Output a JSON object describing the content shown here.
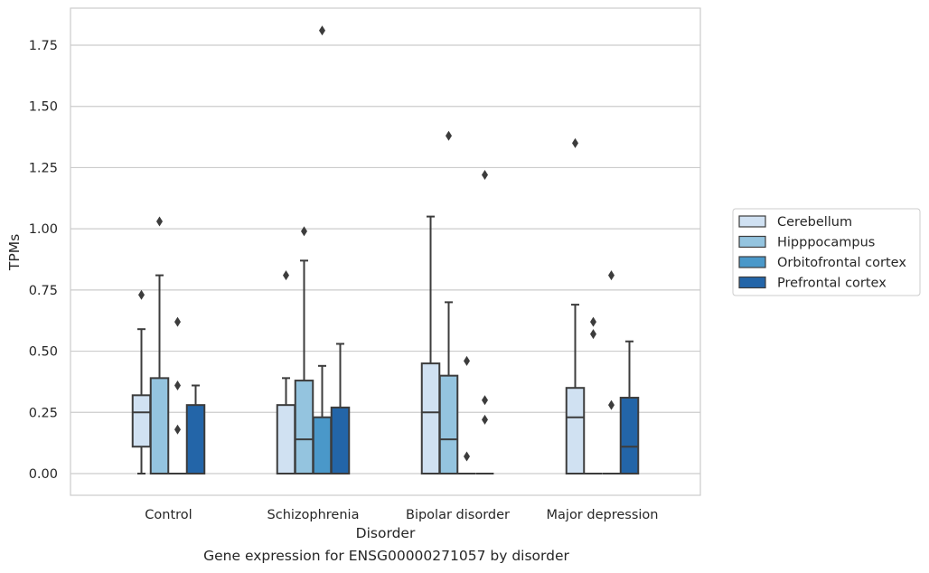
{
  "chart_data": {
    "type": "box",
    "xlabel": "Disorder",
    "ylabel": "TPMs",
    "categories": [
      "Control",
      "Schizophrenia",
      "Bipolar disorder",
      "Major depression"
    ],
    "ylim": [
      -0.09,
      1.9
    ],
    "yticks": [
      "0.00",
      "0.25",
      "0.50",
      "0.75",
      "1.00",
      "1.25",
      "1.50",
      "1.75"
    ],
    "ytick_values": [
      0,
      0.25,
      0.5,
      0.75,
      1.0,
      1.25,
      1.5,
      1.75
    ],
    "grid": "horizontal",
    "legend_position": "right",
    "series": [
      {
        "name": "Cerebellum",
        "color": "#d0e1f2",
        "boxes": [
          {
            "whislo": 0.0,
            "q1": 0.11,
            "med": 0.25,
            "q3": 0.32,
            "whishi": 0.59,
            "fliers": [
              0.73
            ]
          },
          {
            "whislo": 0.0,
            "q1": 0.0,
            "med": 0.0,
            "q3": 0.28,
            "whishi": 0.39,
            "fliers": [
              0.81
            ]
          },
          {
            "whislo": 0.0,
            "q1": 0.0,
            "med": 0.25,
            "q3": 0.45,
            "whishi": 1.05,
            "fliers": []
          },
          {
            "whislo": 0.0,
            "q1": 0.0,
            "med": 0.23,
            "q3": 0.35,
            "whishi": 0.69,
            "fliers": [
              1.35
            ]
          }
        ]
      },
      {
        "name": "Hipppocampus",
        "color": "#94c4df",
        "boxes": [
          {
            "whislo": 0.0,
            "q1": 0.0,
            "med": 0.0,
            "q3": 0.39,
            "whishi": 0.81,
            "fliers": [
              1.03
            ]
          },
          {
            "whislo": 0.0,
            "q1": 0.0,
            "med": 0.14,
            "q3": 0.38,
            "whishi": 0.87,
            "fliers": [
              0.99
            ]
          },
          {
            "whislo": 0.0,
            "q1": 0.0,
            "med": 0.14,
            "q3": 0.4,
            "whishi": 0.7,
            "fliers": [
              1.38
            ]
          },
          {
            "whislo": 0.0,
            "q1": 0.0,
            "med": 0.0,
            "q3": 0.0,
            "whishi": 0.0,
            "fliers": [
              0.62,
              0.57
            ]
          }
        ]
      },
      {
        "name": "Orbitofrontal cortex",
        "color": "#4a98c9",
        "boxes": [
          {
            "whislo": 0.0,
            "q1": 0.0,
            "med": 0.0,
            "q3": 0.0,
            "whishi": 0.0,
            "fliers": [
              0.62,
              0.36,
              0.18
            ]
          },
          {
            "whislo": 0.0,
            "q1": 0.0,
            "med": 0.0,
            "q3": 0.23,
            "whishi": 0.44,
            "fliers": [
              1.81
            ]
          },
          {
            "whislo": 0.0,
            "q1": 0.0,
            "med": 0.0,
            "q3": 0.0,
            "whishi": 0.0,
            "fliers": [
              0.46,
              0.07
            ]
          },
          {
            "whislo": 0.0,
            "q1": 0.0,
            "med": 0.0,
            "q3": 0.0,
            "whishi": 0.0,
            "fliers": [
              0.28,
              0.81
            ]
          }
        ]
      },
      {
        "name": "Prefrontal cortex",
        "color": "#2365a8",
        "boxes": [
          {
            "whislo": 0.0,
            "q1": 0.0,
            "med": 0.0,
            "q3": 0.28,
            "whishi": 0.36,
            "fliers": []
          },
          {
            "whislo": 0.0,
            "q1": 0.0,
            "med": 0.0,
            "q3": 0.27,
            "whishi": 0.53,
            "fliers": []
          },
          {
            "whislo": 0.0,
            "q1": 0.0,
            "med": 0.0,
            "q3": 0.0,
            "whishi": 0.0,
            "fliers": [
              1.22,
              0.3,
              0.22
            ]
          },
          {
            "whislo": 0.0,
            "q1": 0.0,
            "med": 0.11,
            "q3": 0.31,
            "whishi": 0.54,
            "fliers": []
          }
        ]
      }
    ]
  },
  "caption": "Gene expression for ENSG00000271057 by disorder"
}
